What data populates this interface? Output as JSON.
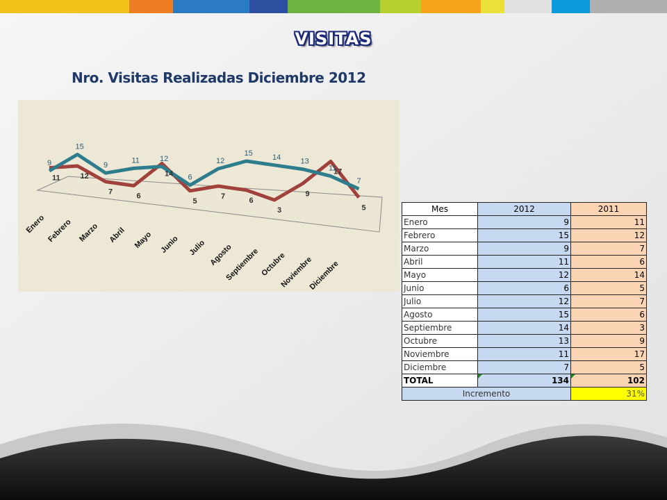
{
  "slide": {
    "title": "VISITAS",
    "subtitle": "Nro. Visitas Realizadas  Diciembre 2012",
    "stripe_colors": [
      "#f2c21a",
      "#ef7d22",
      "#2b7bc4",
      "#2e4fa0",
      "#6cb33f",
      "#b7cf2e",
      "#f8a31c",
      "#ebe03a",
      "#e1e1e1",
      "#0b99dc",
      "#b0b0b0"
    ]
  },
  "chart_data": {
    "type": "line",
    "categories": [
      "Enero",
      "Febrero",
      "Marzo",
      "Abril",
      "Mayo",
      "Junio",
      "Julio",
      "Agosto",
      "Septiembre",
      "Octubre",
      "Noviembre",
      "Diciembre"
    ],
    "series": [
      {
        "name": "2012",
        "values": [
          9,
          15,
          9,
          11,
          12,
          6,
          12,
          15,
          14,
          13,
          11,
          7
        ],
        "color": "#2e7d8c"
      },
      {
        "name": "2011",
        "values": [
          11,
          12,
          7,
          6,
          14,
          5,
          7,
          6,
          3,
          9,
          17,
          5
        ],
        "color": "#a0413c"
      }
    ],
    "title": "",
    "xlabel": "",
    "ylabel": ""
  },
  "table": {
    "headers": [
      "Mes",
      "2012",
      "2011"
    ],
    "rows": [
      [
        "Enero",
        "9",
        "11"
      ],
      [
        "Febrero",
        "15",
        "12"
      ],
      [
        "Marzo",
        "9",
        "7"
      ],
      [
        "Abril",
        "11",
        "6"
      ],
      [
        "Mayo",
        "12",
        "14"
      ],
      [
        "Junio",
        "6",
        "5"
      ],
      [
        "Julio",
        "12",
        "7"
      ],
      [
        "Agosto",
        "15",
        "6"
      ],
      [
        "Septiembre",
        "14",
        "3"
      ],
      [
        "Octubre",
        "13",
        "9"
      ],
      [
        "Noviembre",
        "11",
        "17"
      ],
      [
        "Diciembre",
        "7",
        "5"
      ]
    ],
    "total": [
      "TOTAL",
      "134",
      "102"
    ],
    "increment": {
      "label": "Incremento",
      "value": "31%"
    }
  }
}
